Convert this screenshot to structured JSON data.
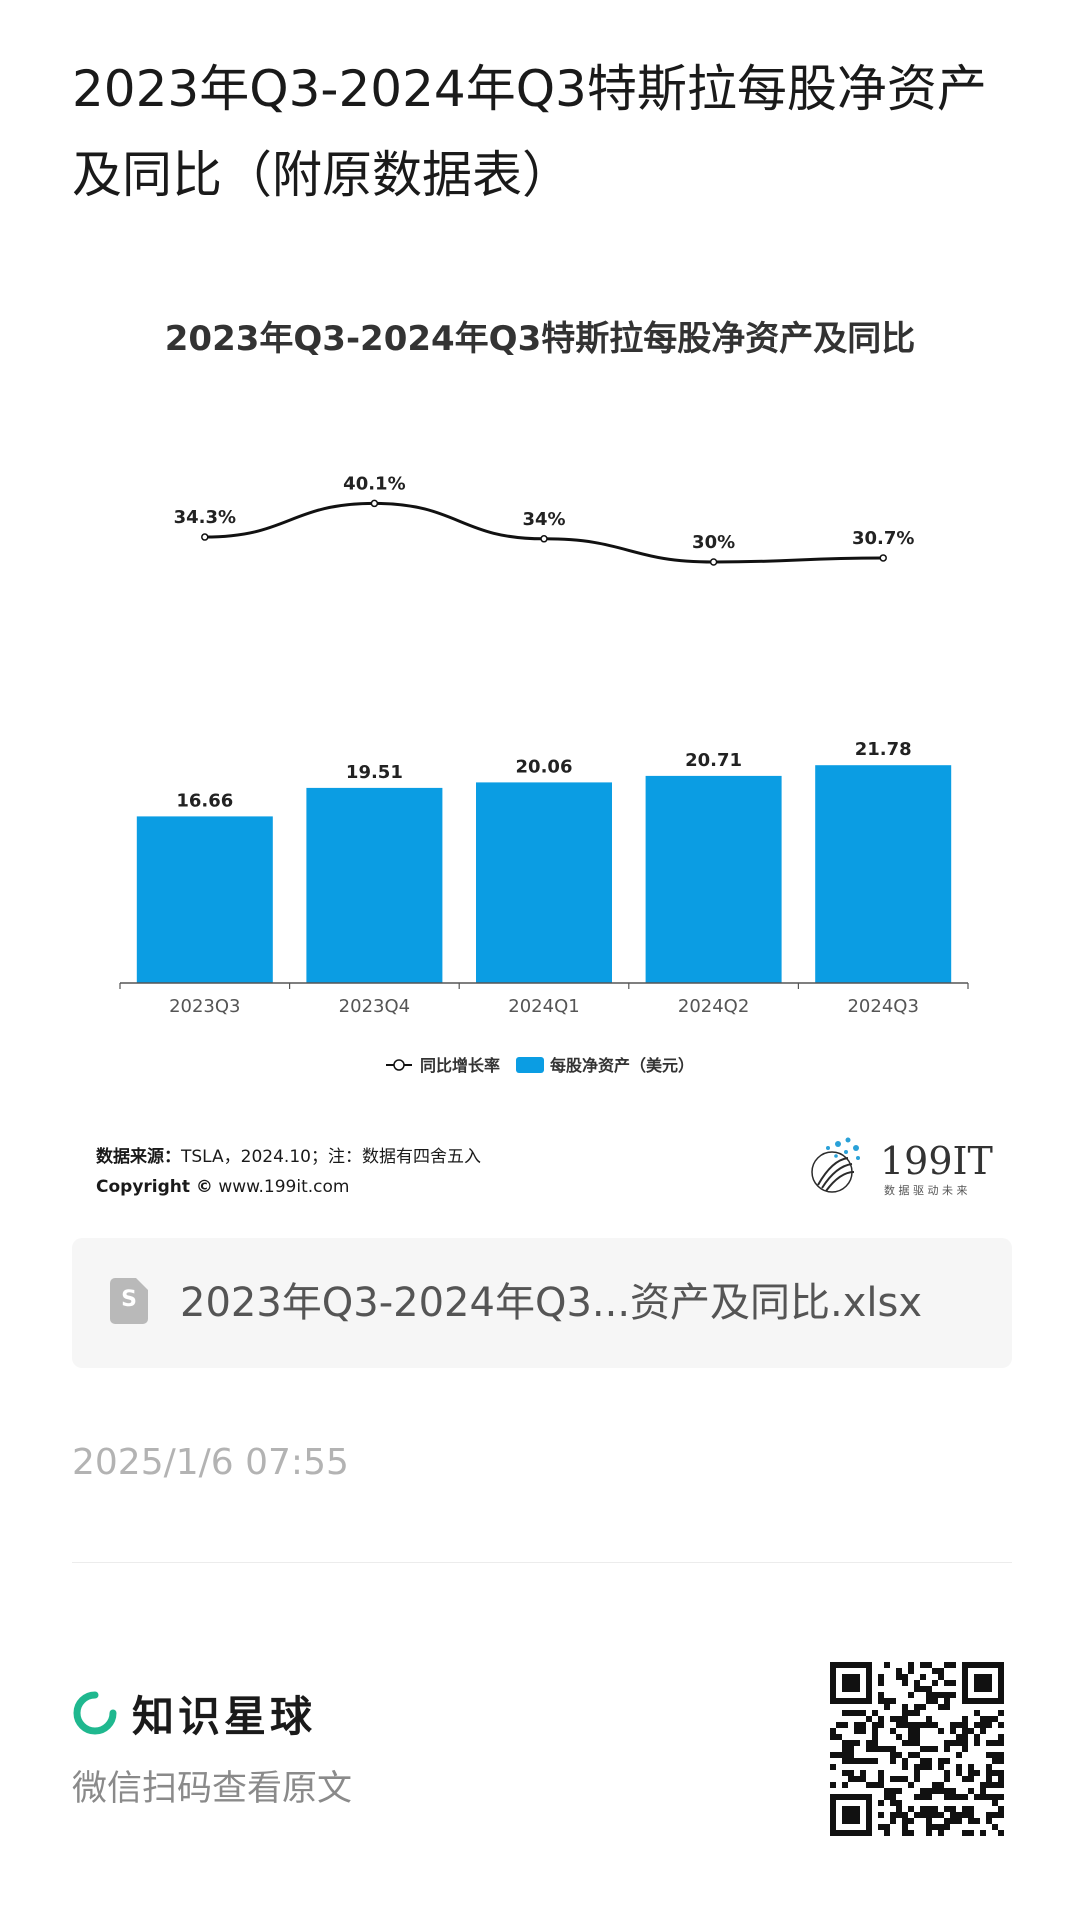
{
  "article": {
    "title": "2023年Q3-2024年Q3特斯拉每股净资产及同比（附原数据表）",
    "file_name": "2023年Q3-2024年Q3...资产及同比.xlsx",
    "file_icon_letter": "S",
    "timestamp": "2025/1/6 07:55"
  },
  "chart_data": {
    "type": "bar",
    "title": "2023年Q3-2024年Q3特斯拉每股净资产及同比",
    "categories": [
      "2023Q3",
      "2023Q4",
      "2024Q1",
      "2024Q2",
      "2024Q3"
    ],
    "series": [
      {
        "name": "每股净资产（美元）",
        "type": "bar",
        "values": [
          16.66,
          19.51,
          20.06,
          20.71,
          21.78
        ],
        "labels": [
          "16.66",
          "19.51",
          "20.06",
          "20.71",
          "21.78"
        ],
        "color": "#0b9de3"
      },
      {
        "name": "同比增长率",
        "type": "line",
        "values": [
          34.3,
          40.1,
          34.0,
          30.0,
          30.7
        ],
        "labels": [
          "34.3%",
          "40.1%",
          "34%",
          "30%",
          "30.7%"
        ],
        "color": "#111111"
      }
    ],
    "legend": [
      {
        "name": "同比增长率",
        "marker": "line"
      },
      {
        "name": "每股净资产（美元）",
        "marker": "bar"
      }
    ],
    "legend_position": "bottom",
    "grid": false,
    "axis_color": "#555555"
  },
  "source": {
    "label": "数据来源：",
    "text": "TSLA，2024.10；注：数据有四舍五入",
    "copyright_label": "Copyright ©",
    "copyright_text": " www.199it.com"
  },
  "logo": {
    "brand": "199IT",
    "slogan": "数 据 驱 动 未 来",
    "accent": "#2aa1d8"
  },
  "footer": {
    "brand_name": "知识星球",
    "brand_color": "#1fb88f",
    "subtitle": "微信扫码查看原文"
  }
}
